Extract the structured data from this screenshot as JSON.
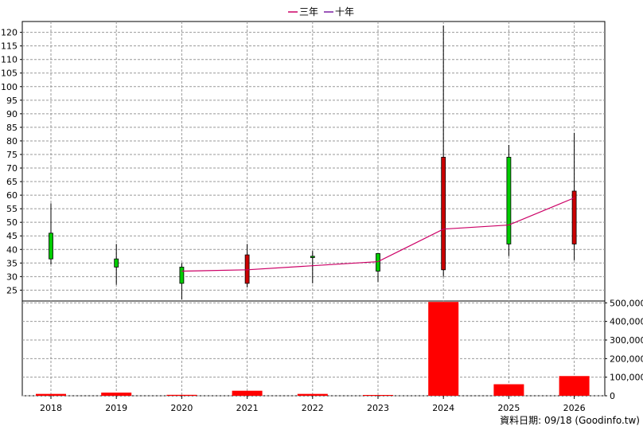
{
  "legend": [
    {
      "label": "三年",
      "color": "#cc0066"
    },
    {
      "label": "十年",
      "color": "#7b1fa2"
    }
  ],
  "footer": "資料日期: 09/18  (Goodinfo.tw)",
  "chart_data": [
    {
      "type": "candlestick",
      "categories": [
        "2018",
        "2019",
        "2020",
        "2021",
        "2022",
        "2023",
        "2024",
        "2025",
        "2026"
      ],
      "ylim": [
        21,
        124
      ],
      "yticks": [
        25,
        30,
        35,
        40,
        45,
        50,
        55,
        60,
        65,
        70,
        75,
        80,
        85,
        90,
        95,
        100,
        105,
        110,
        115,
        120
      ],
      "grid": true,
      "candles": [
        {
          "open": 36.5,
          "close": 46.0,
          "high": 57.0,
          "low": 34.5
        },
        {
          "open": 33.5,
          "close": 36.5,
          "high": 42.0,
          "low": 27.0
        },
        {
          "open": 27.5,
          "close": 33.5,
          "high": 35.0,
          "low": 21.5
        },
        {
          "open": 38.0,
          "close": 27.5,
          "high": 42.0,
          "low": 26.0
        },
        {
          "open": 37.0,
          "close": 37.5,
          "high": 39.5,
          "low": 27.5
        },
        {
          "open": 32.0,
          "close": 38.5,
          "high": 38.5,
          "low": 28.0
        },
        {
          "open": 74.0,
          "close": 32.5,
          "high": 122.5,
          "low": 30.0
        },
        {
          "open": 42.0,
          "close": 74.0,
          "high": 78.5,
          "low": 37.5
        },
        {
          "open": 61.5,
          "close": 42.0,
          "high": 83.0,
          "low": 36.0
        }
      ],
      "rising_color": "#00cc00",
      "falling_color": "#cc0000",
      "series": [
        {
          "name": "三年",
          "color": "#cc0066",
          "values": [
            null,
            null,
            32.0,
            32.5,
            34.0,
            35.5,
            47.5,
            49.0,
            59.0
          ]
        }
      ]
    },
    {
      "type": "bar",
      "categories": [
        "2018",
        "2019",
        "2020",
        "2021",
        "2022",
        "2023",
        "2024",
        "2025",
        "2026"
      ],
      "values": [
        10000,
        17000,
        5000,
        27000,
        10000,
        1000,
        505000,
        62000,
        106000
      ],
      "ylim": [
        0,
        510000
      ],
      "yticks": [
        "0",
        "100,000",
        "200,000",
        "300,000",
        "400,000",
        "500,000"
      ],
      "bar_color": "#ff0000",
      "grid": true
    }
  ]
}
